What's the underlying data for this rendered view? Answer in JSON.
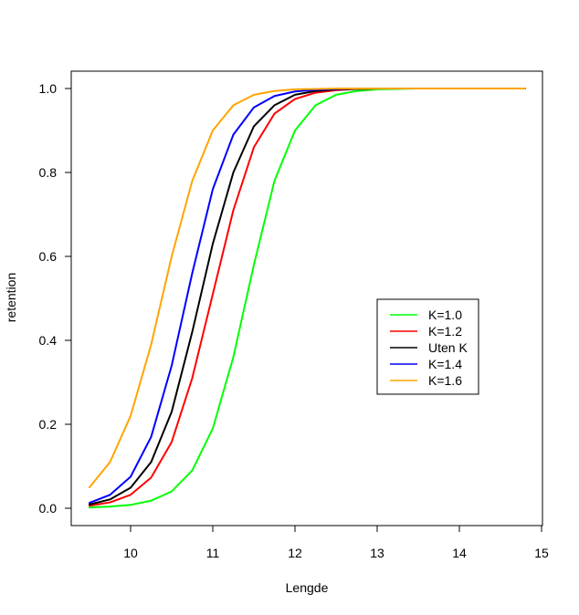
{
  "chart_data": {
    "type": "line",
    "xlabel": "Lengde",
    "ylabel": "retention",
    "xlim": [
      9.5,
      14.8
    ],
    "ylim": [
      0,
      1
    ],
    "x_ticks": [
      10,
      11,
      12,
      13,
      14,
      15
    ],
    "y_ticks": [
      0.0,
      0.2,
      0.4,
      0.6,
      0.8,
      1.0
    ],
    "y_tick_labels": [
      "0.0",
      "0.2",
      "0.4",
      "0.6",
      "0.8",
      "1.0"
    ],
    "x_tick_labels": [
      "10",
      "11",
      "12",
      "13",
      "14",
      "15"
    ],
    "x": [
      9.5,
      9.75,
      10.0,
      10.25,
      10.5,
      10.75,
      11.0,
      11.25,
      11.5,
      11.75,
      12.0,
      12.25,
      12.5,
      12.75,
      13.0,
      13.5,
      14.0,
      14.5,
      14.8
    ],
    "series": [
      {
        "name": "K=1.0",
        "color": "#00ff00",
        "values": [
          0.002,
          0.004,
          0.008,
          0.018,
          0.04,
          0.09,
          0.19,
          0.36,
          0.58,
          0.78,
          0.9,
          0.96,
          0.985,
          0.994,
          0.998,
          1.0,
          1.0,
          1.0,
          1.0
        ]
      },
      {
        "name": "K=1.2",
        "color": "#ff0000",
        "values": [
          0.006,
          0.014,
          0.032,
          0.073,
          0.158,
          0.31,
          0.51,
          0.71,
          0.86,
          0.94,
          0.975,
          0.99,
          0.996,
          0.999,
          1.0,
          1.0,
          1.0,
          1.0,
          1.0
        ]
      },
      {
        "name": "Uten K",
        "color": "#000000",
        "values": [
          0.009,
          0.021,
          0.049,
          0.11,
          0.23,
          0.42,
          0.63,
          0.8,
          0.91,
          0.96,
          0.985,
          0.994,
          0.998,
          0.999,
          1.0,
          1.0,
          1.0,
          1.0,
          1.0
        ]
      },
      {
        "name": "K=1.4",
        "color": "#0000ff",
        "values": [
          0.013,
          0.032,
          0.075,
          0.17,
          0.34,
          0.56,
          0.76,
          0.89,
          0.955,
          0.982,
          0.993,
          0.997,
          0.999,
          1.0,
          1.0,
          1.0,
          1.0,
          1.0,
          1.0
        ]
      },
      {
        "name": "K=1.6",
        "color": "#ffa500",
        "values": [
          0.05,
          0.11,
          0.22,
          0.39,
          0.6,
          0.78,
          0.9,
          0.96,
          0.985,
          0.994,
          0.998,
          0.999,
          1.0,
          1.0,
          1.0,
          1.0,
          1.0,
          1.0,
          1.0
        ]
      }
    ],
    "legend_position": "center-right",
    "grid": false
  }
}
